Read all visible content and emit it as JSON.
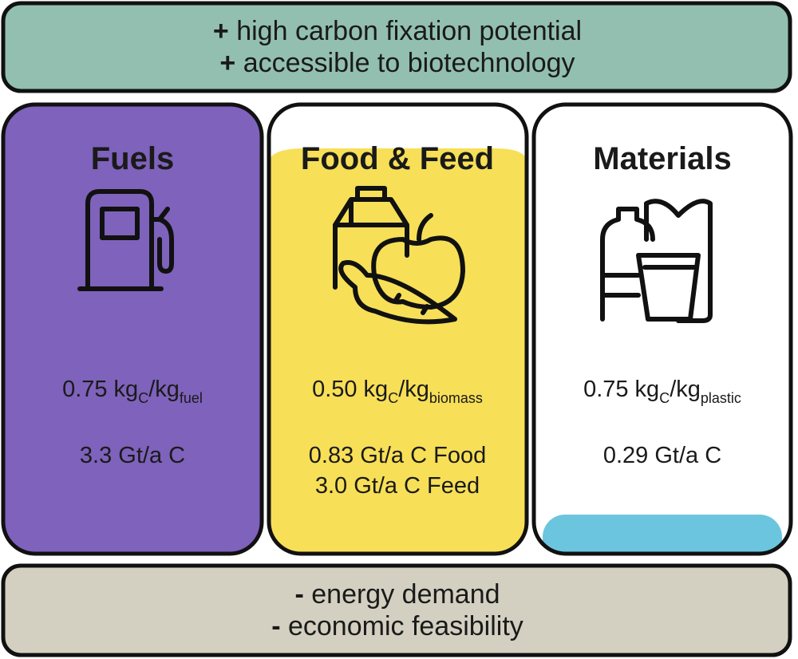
{
  "pros": [
    {
      "sign": "+",
      "text": "high carbon fixation potential"
    },
    {
      "sign": "+",
      "text": "accessible to biotechnology"
    }
  ],
  "columns": [
    {
      "title": "Fuels",
      "ratio": {
        "amount": "0.75 kg",
        "sub": "C",
        "per": "/kg",
        "per_sub": "fuel"
      },
      "totals": [
        "3.3 Gt/a C"
      ]
    },
    {
      "title": "Food & Feed",
      "ratio": {
        "amount": "0.50 kg",
        "sub": "C",
        "per": "/kg",
        "per_sub": "biomass"
      },
      "totals": [
        "0.83 Gt/a C Food",
        "3.0 Gt/a C Feed"
      ]
    },
    {
      "title": "Materials",
      "ratio": {
        "amount": "0.75 kg",
        "sub": "C",
        "per": "/kg",
        "per_sub": "plastic"
      },
      "totals": [
        "0.29 Gt/a C"
      ]
    }
  ],
  "cons": [
    {
      "sign": "-",
      "text": "energy demand"
    },
    {
      "sign": "-",
      "text": "economic feasibility"
    }
  ]
}
